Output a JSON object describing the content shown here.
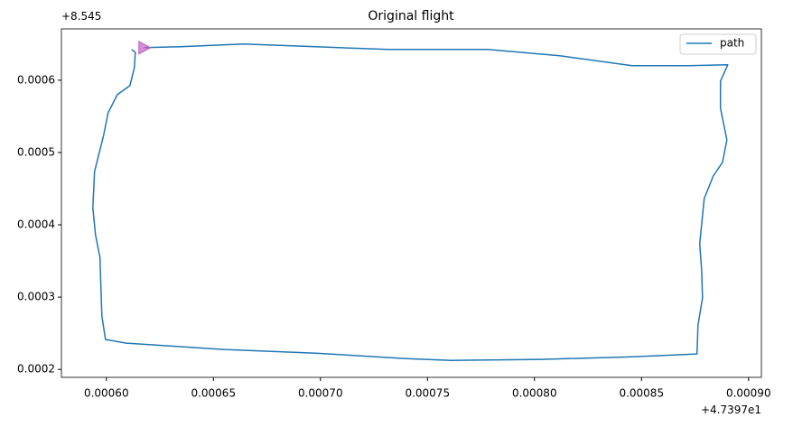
{
  "chart_data": {
    "type": "line",
    "title": "Original flight",
    "x_offset_label": "+4.7397e1",
    "y_offset_label": "+8.545",
    "xlim": [
      0.000579,
      0.000906
    ],
    "ylim": [
      0.000189,
      0.000671
    ],
    "xticks": [
      {
        "value": 0.0006,
        "label": "0.00060"
      },
      {
        "value": 0.00065,
        "label": "0.00065"
      },
      {
        "value": 0.0007,
        "label": "0.00070"
      },
      {
        "value": 0.00075,
        "label": "0.00075"
      },
      {
        "value": 0.0008,
        "label": "0.00080"
      },
      {
        "value": 0.00085,
        "label": "0.00085"
      },
      {
        "value": 0.0009,
        "label": "0.00090"
      }
    ],
    "yticks": [
      0.0002,
      0.0003,
      0.0004,
      0.0005,
      0.0006
    ],
    "grid": false,
    "legend": "upper right",
    "series": [
      {
        "name": "path",
        "color": "#1f77b4",
        "x": [
          0.0006118,
          0.0006135,
          0.0006131,
          0.000611,
          0.0006051,
          0.0006008,
          0.0005987,
          0.0005966,
          0.0005945,
          0.0005937,
          0.0005949,
          0.000597,
          0.0005975,
          0.0005979,
          0.0005996,
          0.0006093,
          0.0006557,
          0.0006979,
          0.0007401,
          0.0007612,
          0.0008034,
          0.0008456,
          0.0008759,
          0.0008764,
          0.0008785,
          0.0008781,
          0.0008772,
          0.0008793,
          0.0008835,
          0.0008878,
          0.0008899,
          0.0008869,
          0.0008869,
          0.0008903,
          0.0008709,
          0.0008456,
          0.0008118,
          0.0007781,
          0.0007316,
          0.0006979,
          0.0006641,
          0.0006346,
          0.0006177
        ],
        "values": [
          0.0006425,
          0.0006388,
          0.0006175,
          0.0005925,
          0.00058,
          0.000555,
          0.0005238,
          0.0004988,
          0.0004738,
          0.0004238,
          0.0003863,
          0.000355,
          0.0003113,
          0.0002738,
          0.0002413,
          0.0002363,
          0.0002275,
          0.0002225,
          0.000215,
          0.0002125,
          0.0002138,
          0.0002175,
          0.0002213,
          0.0002613,
          0.0002988,
          0.0003363,
          0.0003738,
          0.0004363,
          0.0004675,
          0.0004863,
          0.0005175,
          0.0005613,
          0.0005988,
          0.0006213,
          0.00062,
          0.00062,
          0.0006338,
          0.0006425,
          0.0006425,
          0.0006463,
          0.00065,
          0.0006463,
          0.000645
        ]
      }
    ],
    "marker": {
      "x": 0.0006177,
      "y": 0.000645,
      "color": "#c060c0"
    }
  }
}
